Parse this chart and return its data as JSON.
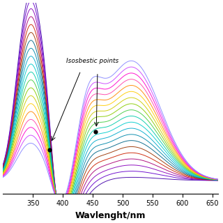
{
  "xlim": [
    300,
    660
  ],
  "ylim": [
    -0.08,
    1.1
  ],
  "xlabel": "Wavlenght/nm",
  "xlabel_fontsize": 9,
  "xticks": [
    350,
    400,
    450,
    500,
    550,
    600,
    650
  ],
  "annotation_text": "Isosbestic points",
  "iso_wl1": 378,
  "iso_val1": 0.175,
  "iso_wl2": 455,
  "iso_val2": 0.315,
  "background_color": "#ffffff",
  "colors": [
    "#4400aa",
    "#6600cc",
    "#8800bb",
    "#aa0077",
    "#cc2200",
    "#993300",
    "#006688",
    "#0088aa",
    "#00aacc",
    "#00cccc",
    "#00ccaa",
    "#44cc44",
    "#88cc00",
    "#cccc00",
    "#ffcc00",
    "#ff8800",
    "#ff44aa",
    "#ff00cc",
    "#cc44ff",
    "#8888ff"
  ],
  "n_curves": 20
}
